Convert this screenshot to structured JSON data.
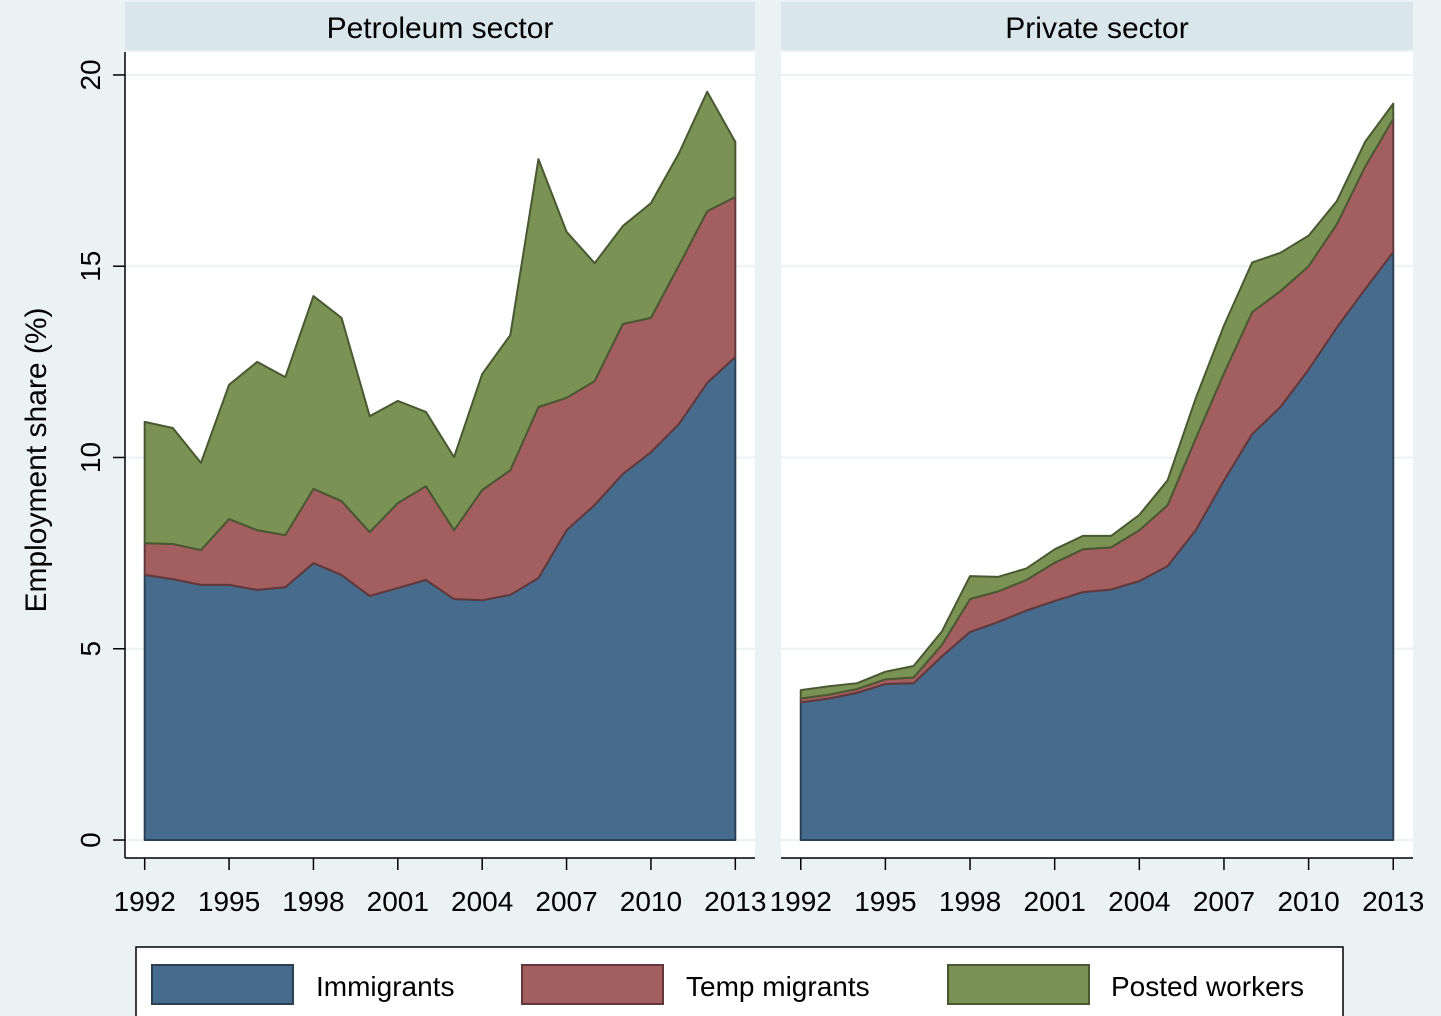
{
  "chart_data": [
    {
      "type": "area",
      "title": "Petroleum sector",
      "y_label": "Employment share (%)",
      "x": [
        1992,
        1993,
        1994,
        1995,
        1996,
        1997,
        1998,
        1999,
        2000,
        2001,
        2002,
        2003,
        2004,
        2005,
        2006,
        2007,
        2008,
        2009,
        2010,
        2011,
        2012,
        2013
      ],
      "series": [
        {
          "name": "Immigrants",
          "color": "#476b8c",
          "values": [
            6.93,
            6.82,
            6.67,
            6.67,
            6.54,
            6.61,
            7.24,
            6.93,
            6.38,
            6.59,
            6.8,
            6.3,
            6.27,
            6.41,
            6.85,
            8.1,
            8.76,
            9.57,
            10.14,
            10.88,
            11.95,
            12.63
          ]
        },
        {
          "name": "Temp migrants",
          "color": "#a35e60",
          "values": [
            0.83,
            0.92,
            0.91,
            1.72,
            1.56,
            1.36,
            1.94,
            1.93,
            1.67,
            2.22,
            2.45,
            1.8,
            2.88,
            3.26,
            4.47,
            3.46,
            3.24,
            3.92,
            3.51,
            4.15,
            4.49,
            4.18
          ]
        },
        {
          "name": "Posted workers",
          "color": "#7a9354",
          "values": [
            3.17,
            3.03,
            2.28,
            3.51,
            4.4,
            4.13,
            5.04,
            4.79,
            3.03,
            2.67,
            1.94,
            1.91,
            3.03,
            3.53,
            6.48,
            4.34,
            3.08,
            2.56,
            3.0,
            2.93,
            3.12,
            1.44
          ]
        }
      ],
      "xlim": [
        1991.3,
        2013.7
      ],
      "ylim": [
        -0.47,
        20.6
      ],
      "xticks": [
        1992,
        1995,
        1998,
        2001,
        2004,
        2007,
        2010,
        2013
      ],
      "yticks": [
        0,
        5,
        10,
        15,
        20
      ],
      "grid": true
    },
    {
      "type": "area",
      "title": "Private sector",
      "x": [
        1992,
        1993,
        1994,
        1995,
        1996,
        1997,
        1998,
        1999,
        2000,
        2001,
        2002,
        2003,
        2004,
        2005,
        2006,
        2007,
        2008,
        2009,
        2010,
        2011,
        2012,
        2013
      ],
      "series": [
        {
          "color": "#476b8c",
          "values": [
            3.6,
            3.7,
            3.85,
            4.08,
            4.1,
            4.8,
            5.44,
            5.7,
            6.0,
            6.25,
            6.48,
            6.55,
            6.77,
            7.16,
            8.1,
            9.4,
            10.61,
            11.32,
            12.3,
            13.4,
            14.4,
            15.37
          ]
        },
        {
          "color": "#a35e60",
          "values": [
            0.1,
            0.1,
            0.1,
            0.12,
            0.15,
            0.3,
            0.86,
            0.8,
            0.8,
            1.0,
            1.12,
            1.1,
            1.33,
            1.59,
            2.4,
            2.8,
            3.19,
            3.03,
            2.7,
            2.7,
            3.2,
            3.48
          ]
        },
        {
          "color": "#7a9354",
          "values": [
            0.22,
            0.22,
            0.15,
            0.2,
            0.3,
            0.35,
            0.6,
            0.38,
            0.3,
            0.35,
            0.35,
            0.3,
            0.4,
            0.65,
            1.05,
            1.25,
            1.3,
            1.0,
            0.8,
            0.6,
            0.65,
            0.4
          ]
        }
      ],
      "xlim": [
        1991.3,
        2013.7
      ],
      "ylim": [
        -0.47,
        20.6
      ],
      "xticks": [
        1992,
        1995,
        1998,
        2001,
        2004,
        2007,
        2010,
        2013
      ],
      "yticks": [
        0,
        5,
        10,
        15,
        20
      ],
      "grid": true
    }
  ]
}
